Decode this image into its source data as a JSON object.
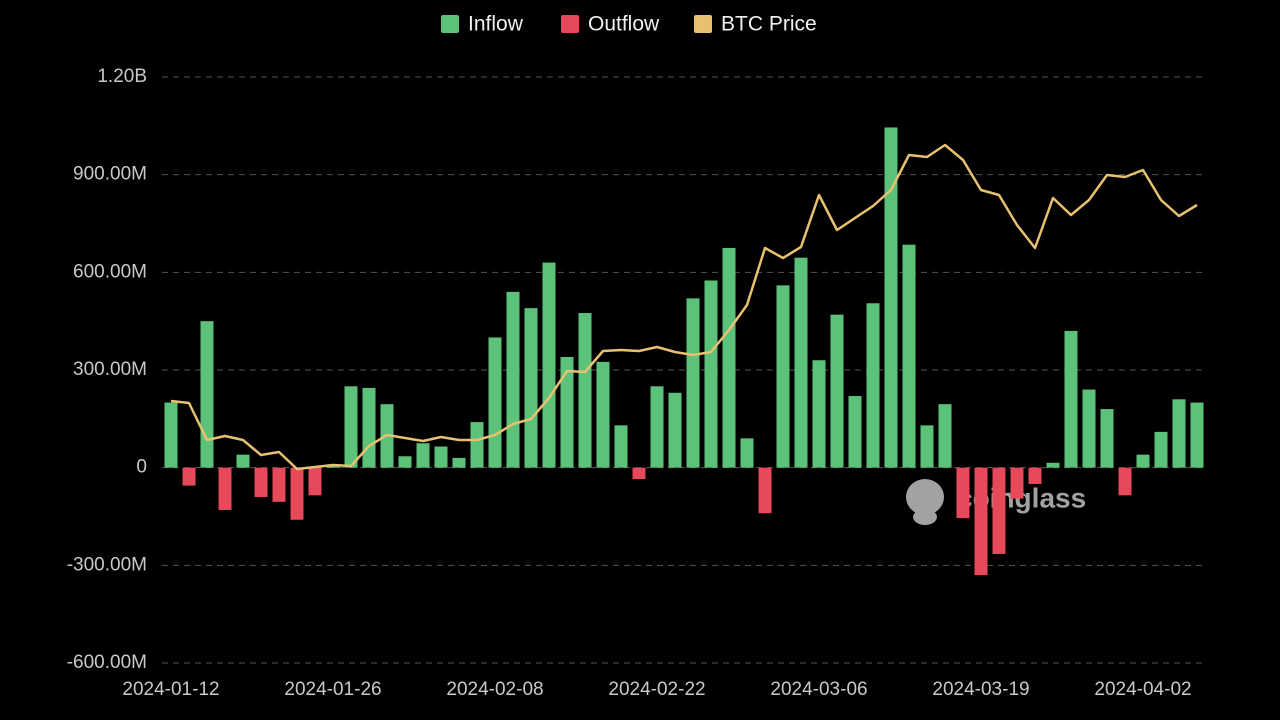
{
  "chart_data": {
    "type": "bar",
    "categories": [
      "2024-01-12",
      null,
      null,
      null,
      null,
      null,
      null,
      null,
      null,
      "2024-01-26",
      null,
      null,
      null,
      null,
      null,
      null,
      null,
      null,
      "2024-02-08",
      null,
      null,
      null,
      null,
      null,
      null,
      null,
      null,
      "2024-02-22",
      null,
      null,
      null,
      null,
      null,
      null,
      null,
      null,
      "2024-03-06",
      null,
      null,
      null,
      null,
      null,
      null,
      null,
      null,
      "2024-03-19",
      null,
      null,
      null,
      null,
      null,
      null,
      null,
      null,
      "2024-04-02",
      null,
      null,
      null
    ],
    "series": [
      {
        "name": "Inflow",
        "color": "#5cc27a",
        "values": [
          200,
          null,
          450,
          null,
          40,
          null,
          null,
          null,
          null,
          10,
          250,
          245,
          195,
          35,
          75,
          65,
          30,
          140,
          400,
          540,
          490,
          630,
          340,
          475,
          325,
          130,
          null,
          250,
          230,
          520,
          575,
          675,
          90,
          null,
          560,
          645,
          330,
          470,
          220,
          505,
          1045,
          685,
          130,
          195,
          null,
          null,
          null,
          null,
          null,
          15,
          420,
          240,
          180,
          null,
          40,
          110,
          210,
          200
        ]
      },
      {
        "name": "Outflow",
        "color": "#e5495a",
        "values": [
          null,
          -55,
          null,
          -130,
          null,
          -90,
          -105,
          -160,
          -85,
          null,
          null,
          null,
          null,
          null,
          null,
          null,
          null,
          null,
          null,
          null,
          null,
          null,
          null,
          null,
          null,
          null,
          -35,
          null,
          null,
          null,
          null,
          null,
          null,
          -140,
          null,
          null,
          null,
          null,
          null,
          null,
          null,
          null,
          null,
          null,
          -155,
          -330,
          -265,
          -95,
          -50,
          null,
          null,
          null,
          null,
          -85,
          null,
          null,
          null,
          null
        ]
      },
      {
        "name": "BTC Price",
        "color": "#e8c170",
        "type": "line",
        "axis": "y2",
        "values": [
          46400,
          46200,
          42500,
          42900,
          42500,
          41000,
          41300,
          39600,
          39800,
          40000,
          39900,
          41900,
          43000,
          42700,
          42400,
          42800,
          42500,
          42500,
          43000,
          44100,
          44600,
          46700,
          49400,
          49300,
          51400,
          51500,
          51400,
          51800,
          51300,
          51000,
          51300,
          53500,
          56000,
          61700,
          60700,
          61800,
          67000,
          63500,
          64700,
          65900,
          67500,
          71000,
          70800,
          72000,
          70500,
          67500,
          67000,
          64000,
          61700,
          66700,
          65000,
          66500,
          69000,
          68800,
          69500,
          66500,
          64900,
          66000
        ]
      }
    ],
    "ylim": [
      -600,
      1200
    ],
    "yticks": [
      {
        "value": 1200,
        "label": "1.20B"
      },
      {
        "value": 900,
        "label": "900.00M"
      },
      {
        "value": 600,
        "label": "600.00M"
      },
      {
        "value": 300,
        "label": "300.00M"
      },
      0,
      {
        "value": -300,
        "label": "-300.00M"
      },
      {
        "value": -600,
        "label": "-600.00M"
      }
    ],
    "y2lim": [
      20200,
      78800
    ],
    "grid": true,
    "legend": "top",
    "watermark": "coinglass"
  }
}
